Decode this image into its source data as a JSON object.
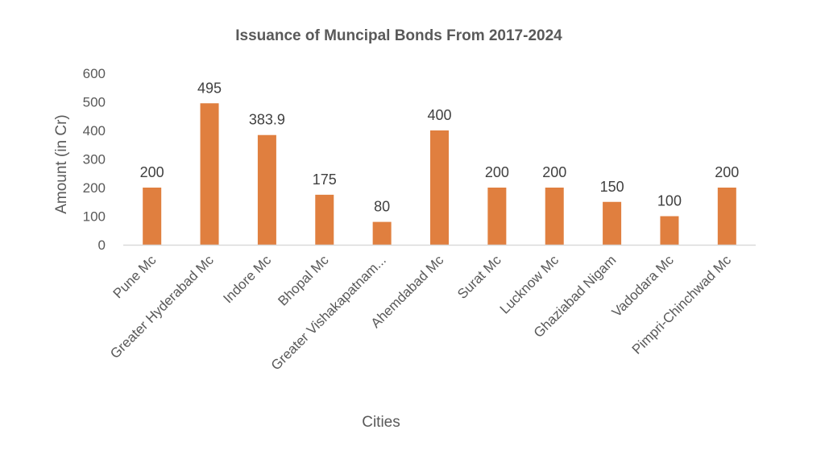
{
  "chart_data": {
    "type": "bar",
    "title": "Issuance of Muncipal Bonds From 2017-2024",
    "xlabel": "Cities",
    "ylabel": "Amount  (in Cr)",
    "categories": [
      "Pune Mc",
      "Greater Hyderabad Mc",
      "Indore Mc",
      "Bhopal Mc",
      "Greater Vishakapatnam...",
      "Ahemdabad Mc",
      "Surat Mc",
      "Lucknow Mc",
      "Ghaziabad Nigam",
      "Vadodara Mc",
      "Pimpri-Chinchwad Mc"
    ],
    "values": [
      200,
      495,
      383.9,
      175,
      80,
      400,
      200,
      200,
      150,
      100,
      200
    ],
    "data_labels": [
      "200",
      "495",
      "383.9",
      "175",
      "80",
      "400",
      "200",
      "200",
      "150",
      "100",
      "200"
    ],
    "yticks": [
      "0",
      "100",
      "200",
      "300",
      "400",
      "500",
      "600"
    ],
    "ylim": [
      0,
      600
    ],
    "grid": false,
    "legend": "none",
    "bar_color": "#E07F3F",
    "axis_color": "#D9D9D9"
  }
}
